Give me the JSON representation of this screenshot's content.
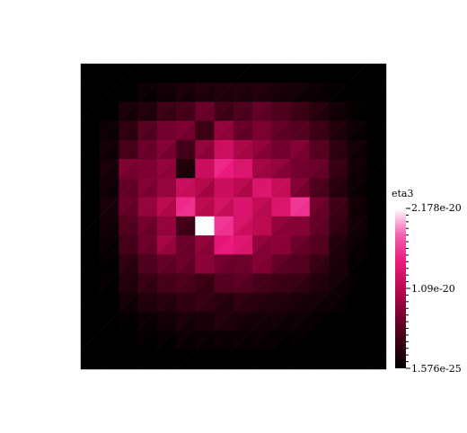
{
  "chart_data": {
    "type": "heatmap",
    "grid": {
      "rows": 16,
      "cols": 16,
      "triangulated": true
    },
    "colorbar": {
      "title": "eta3",
      "max_label": "2.178e-20",
      "mid_label": "1.09e-20",
      "min_label": "1.576e-25",
      "max": 2.178e-20,
      "mid": 1.09e-20,
      "min": 1.576e-25,
      "colors": [
        "#000000",
        "#3a0013",
        "#7a0030",
        "#bd0a50",
        "#ec1a7d",
        "#f25fb1",
        "#ffffff"
      ]
    },
    "values": [
      [
        0,
        0,
        0,
        0,
        0,
        0,
        0,
        0,
        0,
        0,
        0,
        0,
        0,
        0,
        0,
        0
      ],
      [
        0,
        0,
        0,
        0.04,
        0.06,
        0.08,
        0.1,
        0.1,
        0.1,
        0.1,
        0.08,
        0.06,
        0.04,
        0.02,
        0,
        0
      ],
      [
        0,
        0,
        0.08,
        0.1,
        0.18,
        0.2,
        0.3,
        0.2,
        0.22,
        0.28,
        0.22,
        0.18,
        0.12,
        0.06,
        0.02,
        0
      ],
      [
        0,
        0.04,
        0.14,
        0.25,
        0.32,
        0.34,
        0.18,
        0.4,
        0.3,
        0.34,
        0.28,
        0.24,
        0.18,
        0.1,
        0.04,
        0
      ],
      [
        0,
        0.06,
        0.2,
        0.3,
        0.36,
        0.2,
        0.4,
        0.55,
        0.46,
        0.4,
        0.32,
        0.36,
        0.24,
        0.14,
        0.06,
        0
      ],
      [
        0,
        0.08,
        0.35,
        0.34,
        0.4,
        0.1,
        0.55,
        0.7,
        0.6,
        0.44,
        0.4,
        0.32,
        0.3,
        0.16,
        0.06,
        0
      ],
      [
        0,
        0.06,
        0.28,
        0.36,
        0.4,
        0.55,
        0.48,
        0.55,
        0.5,
        0.6,
        0.54,
        0.36,
        0.22,
        0.12,
        0.04,
        0
      ],
      [
        0,
        0.08,
        0.3,
        0.4,
        0.5,
        0.7,
        0.5,
        0.58,
        0.6,
        0.52,
        0.6,
        0.74,
        0.32,
        0.18,
        0.06,
        0
      ],
      [
        0,
        0.06,
        0.24,
        0.32,
        0.4,
        0.2,
        1.0,
        0.74,
        0.6,
        0.5,
        0.4,
        0.36,
        0.28,
        0.16,
        0.06,
        0
      ],
      [
        0,
        0.04,
        0.2,
        0.3,
        0.44,
        0.3,
        0.4,
        0.64,
        0.62,
        0.4,
        0.38,
        0.3,
        0.24,
        0.1,
        0.04,
        0
      ],
      [
        0,
        0.02,
        0.14,
        0.22,
        0.28,
        0.3,
        0.38,
        0.32,
        0.3,
        0.36,
        0.28,
        0.24,
        0.16,
        0.08,
        0.02,
        0
      ],
      [
        0,
        0.02,
        0.1,
        0.16,
        0.2,
        0.22,
        0.18,
        0.24,
        0.26,
        0.2,
        0.18,
        0.16,
        0.1,
        0.06,
        0.02,
        0
      ],
      [
        0,
        0,
        0.06,
        0.1,
        0.12,
        0.14,
        0.16,
        0.12,
        0.14,
        0.12,
        0.1,
        0.08,
        0.06,
        0.04,
        0,
        0
      ],
      [
        0,
        0,
        0.02,
        0.04,
        0.06,
        0.08,
        0.08,
        0.1,
        0.08,
        0.06,
        0.06,
        0.04,
        0.02,
        0,
        0,
        0
      ],
      [
        0,
        0,
        0,
        0.02,
        0.02,
        0.04,
        0.04,
        0.04,
        0.04,
        0.04,
        0.02,
        0.02,
        0,
        0,
        0,
        0
      ],
      [
        0,
        0,
        0,
        0,
        0,
        0,
        0,
        0,
        0,
        0,
        0,
        0,
        0,
        0,
        0,
        0
      ]
    ]
  }
}
